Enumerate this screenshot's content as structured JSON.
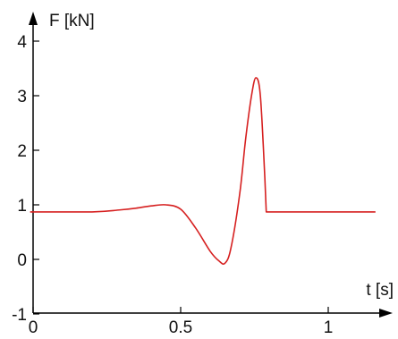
{
  "chart_data": {
    "type": "line",
    "xlabel": "t [s]",
    "ylabel": "F [kN]",
    "xlim": [
      0,
      1.2
    ],
    "ylim": [
      -1,
      4.5
    ],
    "xticks": [
      {
        "value": 0,
        "label": "0"
      },
      {
        "value": 0.5,
        "label": "0.5"
      },
      {
        "value": 1,
        "label": "1"
      }
    ],
    "yticks": [
      {
        "value": -1,
        "label": "-1"
      },
      {
        "value": 0,
        "label": "0"
      },
      {
        "value": 1,
        "label": "1"
      },
      {
        "value": 2,
        "label": "2"
      },
      {
        "value": 3,
        "label": "3"
      },
      {
        "value": 4,
        "label": "4"
      }
    ],
    "grid": false,
    "series": [
      {
        "color": "#d62020",
        "x": [
          -0.01,
          0.2,
          0.3,
          0.35,
          0.4,
          0.45,
          0.5,
          0.55,
          0.6,
          0.63,
          0.65,
          0.67,
          0.7,
          0.72,
          0.74,
          0.755,
          0.77,
          0.785,
          0.79,
          1.16
        ],
        "y": [
          0.87,
          0.87,
          0.91,
          0.94,
          0.98,
          1.0,
          0.92,
          0.58,
          0.15,
          -0.03,
          -0.07,
          0.2,
          1.2,
          2.2,
          3.0,
          3.33,
          3.0,
          1.5,
          0.87,
          0.87
        ]
      }
    ]
  }
}
